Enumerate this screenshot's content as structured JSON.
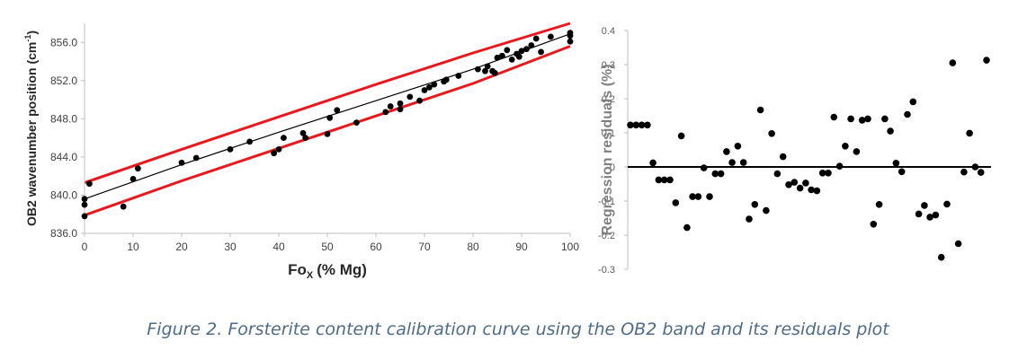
{
  "caption": "Figure 2. Forsterite content calibration curve using the OB2 band and its residuals plot",
  "colors": {
    "points": "#000000",
    "prediction_band": "#e8191e",
    "fit_line": "#000000",
    "zero_line": "#000000",
    "axis": "#bfbfbf",
    "caption": "#4f6b8a"
  },
  "chart_data": [
    {
      "type": "scatter",
      "xlabel": "Fo",
      "xlabel_sub": "X",
      "xlabel_suffix": "(% Mg)",
      "ylabel": "OB2 wavenumber position (cm",
      "ylabel_sup": "-1",
      "ylabel_suffix": ")",
      "xlim": [
        0,
        100
      ],
      "ylim": [
        836,
        858
      ],
      "xticks": [
        0,
        10,
        20,
        30,
        40,
        50,
        60,
        70,
        80,
        90,
        100
      ],
      "xtick_labels": [
        "0",
        "10",
        "20",
        "30",
        "40",
        "50",
        "60",
        "70",
        "80",
        "90",
        "100"
      ],
      "yticks": [
        836,
        840,
        844,
        848,
        852,
        856
      ],
      "ytick_labels": [
        "836.0",
        "840.0",
        "844.0",
        "848.0",
        "852.0",
        "856.0"
      ],
      "grid": false,
      "points": [
        [
          0,
          837.8
        ],
        [
          0,
          839.0
        ],
        [
          0,
          839.6
        ],
        [
          1,
          841.2
        ],
        [
          8,
          838.8
        ],
        [
          10,
          841.7
        ],
        [
          11,
          842.8
        ],
        [
          20,
          843.4
        ],
        [
          23,
          843.9
        ],
        [
          30,
          844.8
        ],
        [
          34,
          845.6
        ],
        [
          39,
          844.4
        ],
        [
          40,
          844.8
        ],
        [
          41,
          846.0
        ],
        [
          45,
          846.5
        ],
        [
          45.5,
          846.0
        ],
        [
          50,
          846.4
        ],
        [
          50.5,
          848.1
        ],
        [
          52,
          848.9
        ],
        [
          56,
          847.6
        ],
        [
          62,
          848.7
        ],
        [
          63,
          849.3
        ],
        [
          65,
          849.6
        ],
        [
          65,
          849.0
        ],
        [
          67,
          850.3
        ],
        [
          69,
          849.9
        ],
        [
          70,
          851.0
        ],
        [
          71,
          851.3
        ],
        [
          72,
          851.6
        ],
        [
          74,
          851.9
        ],
        [
          74.5,
          852.1
        ],
        [
          77,
          852.5
        ],
        [
          81,
          853.2
        ],
        [
          82.5,
          853.0
        ],
        [
          83,
          853.5
        ],
        [
          84,
          853.0
        ],
        [
          84.5,
          852.8
        ],
        [
          85,
          854.4
        ],
        [
          86,
          854.6
        ],
        [
          87,
          855.2
        ],
        [
          88,
          854.2
        ],
        [
          89,
          854.8
        ],
        [
          89.5,
          854.5
        ],
        [
          90,
          855.1
        ],
        [
          91,
          855.3
        ],
        [
          92,
          855.7
        ],
        [
          93,
          856.4
        ],
        [
          94,
          855.0
        ],
        [
          96,
          856.6
        ],
        [
          100,
          856.1
        ],
        [
          100,
          856.7
        ],
        [
          100,
          857.0
        ]
      ],
      "fit_line": [
        [
          0,
          839.6
        ],
        [
          20,
          843.2
        ],
        [
          40,
          846.6
        ],
        [
          60,
          849.9
        ],
        [
          80,
          853.2
        ],
        [
          100,
          856.9
        ]
      ],
      "upper_band": [
        [
          0,
          841.3
        ],
        [
          20,
          844.8
        ],
        [
          40,
          848.2
        ],
        [
          60,
          851.6
        ],
        [
          80,
          854.9
        ],
        [
          100,
          858.0
        ]
      ],
      "lower_band": [
        [
          0,
          837.9
        ],
        [
          20,
          841.5
        ],
        [
          40,
          844.9
        ],
        [
          60,
          848.3
        ],
        [
          80,
          851.7
        ],
        [
          100,
          855.6
        ]
      ]
    },
    {
      "type": "scatter",
      "ylabel": "Regression residuals (%)",
      "ylim": [
        -0.3,
        0.4
      ],
      "yticks": [
        -0.3,
        -0.2,
        -0.1,
        0,
        0.1,
        0.2,
        0.3,
        0.4
      ],
      "ytick_labels": [
        "-0.3",
        "-0.2",
        "-0.1",
        "0",
        "0.1",
        "0.2",
        "0.3",
        "0.4"
      ],
      "xlim": [
        0,
        61
      ],
      "xaxis_visible": false,
      "zero_line": true,
      "grid": false,
      "values": [
        0.123,
        0.123,
        0.123,
        0.123,
        0.012,
        -0.038,
        -0.038,
        -0.038,
        -0.105,
        0.091,
        -0.178,
        -0.087,
        -0.087,
        -0.003,
        -0.087,
        -0.02,
        -0.02,
        0.045,
        0.013,
        0.061,
        0.013,
        -0.153,
        -0.11,
        0.167,
        -0.128,
        0.098,
        -0.02,
        0.03,
        -0.052,
        -0.045,
        -0.062,
        -0.047,
        -0.067,
        -0.07,
        -0.018,
        -0.018,
        0.146,
        0.002,
        0.061,
        0.141,
        0.045,
        0.137,
        0.141,
        -0.168,
        -0.11,
        0.141,
        0.105,
        0.011,
        -0.014,
        0.154,
        0.191,
        -0.138,
        -0.113,
        -0.147,
        -0.141,
        -0.265,
        -0.109,
        0.305,
        -0.225,
        -0.015,
        0.099,
        0.0,
        -0.016,
        0.313
      ]
    }
  ]
}
